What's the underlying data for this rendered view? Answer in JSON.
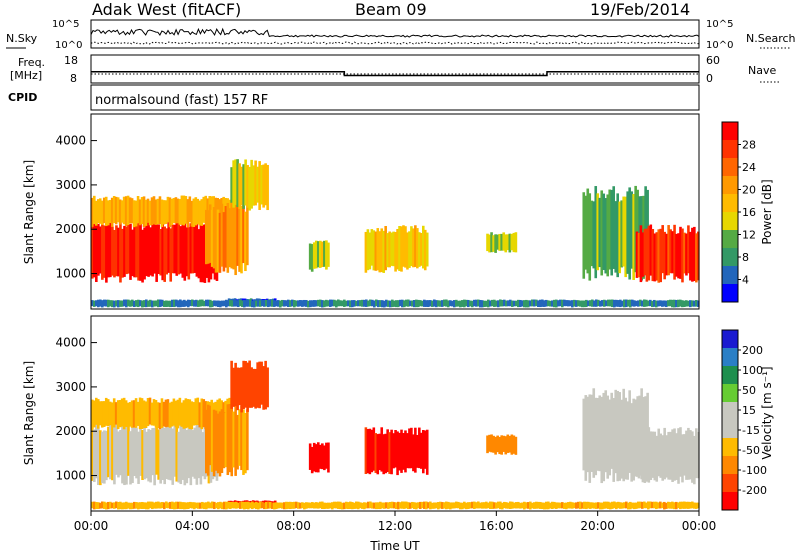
{
  "header": {
    "radar_title": "Adak West (fitACF)",
    "beam_label": "Beam 09",
    "date_label": "19/Feb/2014"
  },
  "noise_panel": {
    "left_label": "N.Sky",
    "right_label": "N.Search",
    "ticks": [
      "10^5",
      "10^0"
    ],
    "right_ticks": [
      "10^5",
      "10^0"
    ]
  },
  "freq_panel": {
    "left_label_line1": "Freq.",
    "left_label_line2": "[MHz]",
    "left_ticks": [
      "18",
      "8"
    ],
    "right_ticks": [
      "60",
      "0"
    ],
    "right_label": "Nave",
    "cpid_label": "CPID",
    "cpid_text": "normalsound (fast) 157 RF"
  },
  "power_panel": {
    "ylabel": "Slant Range [km]",
    "yticks": [
      "4000",
      "3000",
      "2000",
      "1000"
    ],
    "colorbar_label": "Power [dB]",
    "colorbar_ticks": [
      "28",
      "24",
      "20",
      "16",
      "12",
      "8",
      "4"
    ],
    "colorbar_colors": [
      "#ff0000",
      "#ff3300",
      "#ff6600",
      "#ff9900",
      "#ffbb00",
      "#e7d700",
      "#55aa44",
      "#339966",
      "#2266bb",
      "#0000ff"
    ]
  },
  "velocity_panel": {
    "ylabel": "Slant Range [km]",
    "yticks": [
      "4000",
      "3000",
      "2000",
      "1000"
    ],
    "colorbar_label": "Velocity [m s⁻¹]",
    "colorbar_ticks": [
      "200",
      "100",
      "50",
      "15",
      "-15",
      "-50",
      "-100",
      "-200"
    ],
    "colorbar_colors": [
      "#1a1ad0",
      "#2a7fc6",
      "#1e8f4e",
      "#66cc33",
      "#c8c8c0",
      "#c8c8c0",
      "#ffbb00",
      "#ff8800",
      "#ff4400",
      "#ff0000"
    ]
  },
  "time_axis": {
    "ticks": [
      "00:00",
      "04:00",
      "08:00",
      "12:00",
      "16:00",
      "20:00",
      "00:00"
    ],
    "label": "Time UT"
  },
  "chart_data": {
    "type": "heatmap",
    "x": [
      "00:00",
      "04:00",
      "08:00",
      "12:00",
      "16:00",
      "20:00",
      "00:00"
    ],
    "xlabel": "Time UT",
    "ylabel": "Slant Range [km]",
    "ylim": [
      200,
      4600
    ],
    "power_range_db": [
      0,
      30
    ],
    "velocity_range": [
      -250,
      250
    ],
    "frequency_levels_mhz": [
      {
        "from_hour": 0,
        "to_hour": 10,
        "value": 11
      },
      {
        "from_hour": 10,
        "to_hour": 18,
        "value": 9
      },
      {
        "from_hour": 18,
        "to_hour": 24,
        "value": 11
      }
    ],
    "echo_regions": [
      {
        "start_hour": 0.0,
        "end_hour": 5.0,
        "range_km": [
          900,
          2100
        ],
        "power_db": 28,
        "velocity": -5
      },
      {
        "start_hour": 0.0,
        "end_hour": 5.5,
        "range_km": [
          2100,
          2700
        ],
        "power_db": 18,
        "velocity": -40
      },
      {
        "start_hour": 4.5,
        "end_hour": 6.2,
        "range_km": [
          1100,
          2500
        ],
        "power_db": 20,
        "velocity": -60
      },
      {
        "start_hour": 5.5,
        "end_hour": 7.0,
        "range_km": [
          2500,
          3500
        ],
        "power_db": 14,
        "velocity": -120
      },
      {
        "start_hour": 8.6,
        "end_hour": 9.4,
        "range_km": [
          1100,
          1700
        ],
        "power_db": 14,
        "velocity": -220
      },
      {
        "start_hour": 10.8,
        "end_hour": 13.3,
        "range_km": [
          1100,
          2000
        ],
        "power_db": 16,
        "velocity": -180
      },
      {
        "start_hour": 15.6,
        "end_hour": 16.8,
        "range_km": [
          1500,
          1900
        ],
        "power_db": 12,
        "velocity": -60
      },
      {
        "start_hour": 19.4,
        "end_hour": 22.0,
        "range_km": [
          1000,
          2800
        ],
        "power_db": 10,
        "velocity": 0
      },
      {
        "start_hour": 21.5,
        "end_hour": 24.0,
        "range_km": [
          900,
          2000
        ],
        "power_db": 26,
        "velocity": 0
      },
      {
        "start_hour": 5.4,
        "end_hour": 7.3,
        "range_km": [
          300,
          430
        ],
        "power_db": 4,
        "velocity": -230
      },
      {
        "start_hour": 0.0,
        "end_hour": 24.0,
        "range_km": [
          250,
          400
        ],
        "power_db": 6,
        "velocity": -40
      }
    ]
  }
}
